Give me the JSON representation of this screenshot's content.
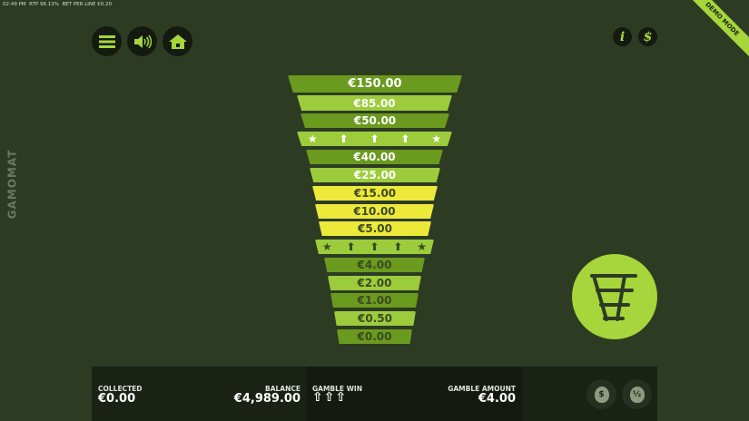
{
  "status": {
    "time": "02:49 PM",
    "rtp": "RTP 96.13%",
    "bet": "BET PER LINE €0.20"
  },
  "ribbon": "DEMO MODE",
  "brand": "GAMOMAT",
  "icons": {
    "menu": "menu-icon",
    "sound": "speaker-icon",
    "home": "home-icon",
    "info": "i",
    "paytable": "$"
  },
  "colors": {
    "dark": "#6a9a1e",
    "light": "#9ccc3c",
    "yellow": "#ece93a",
    "accent": "#a6d63c"
  },
  "ladder": [
    {
      "label": "€150.00",
      "tone": "dark",
      "text": "light"
    },
    {
      "label": "€85.00",
      "tone": "light",
      "text": "light"
    },
    {
      "label": "€50.00",
      "tone": "dark",
      "text": "light"
    },
    {
      "label": "★ ⬆ ⬆ ⬆ ★",
      "tone": "light",
      "text": "light",
      "arrows": true
    },
    {
      "label": "€40.00",
      "tone": "dark",
      "text": "light"
    },
    {
      "label": "€25.00",
      "tone": "light",
      "text": "light"
    },
    {
      "label": "€15.00",
      "tone": "yellow",
      "text": "dark"
    },
    {
      "label": "€10.00",
      "tone": "yellow",
      "text": "dark"
    },
    {
      "label": "€5.00",
      "tone": "yellow",
      "text": "dark"
    },
    {
      "label": "★ ⬆ ⬆ ⬆ ★",
      "tone": "light",
      "text": "dark",
      "arrows": true
    },
    {
      "label": "€4.00",
      "tone": "dark",
      "text": "dark"
    },
    {
      "label": "€2.00",
      "tone": "light",
      "text": "dark"
    },
    {
      "label": "€1.00",
      "tone": "dark",
      "text": "dark"
    },
    {
      "label": "€0.50",
      "tone": "light",
      "text": "dark"
    },
    {
      "label": "€0.00",
      "tone": "dark",
      "text": "dark"
    }
  ],
  "footer": {
    "collected_label": "COLLECTED",
    "collected": "€0.00",
    "balance_label": "BALANCE",
    "balance": "€4,989.00",
    "gamble_win_label": "GAMBLE WIN",
    "gamble_win_arrows": "⇧⇧⇧",
    "gamble_amount_label": "GAMBLE AMOUNT",
    "gamble_amount": "€4.00",
    "collect_icon": "$",
    "half_icon": "½"
  }
}
